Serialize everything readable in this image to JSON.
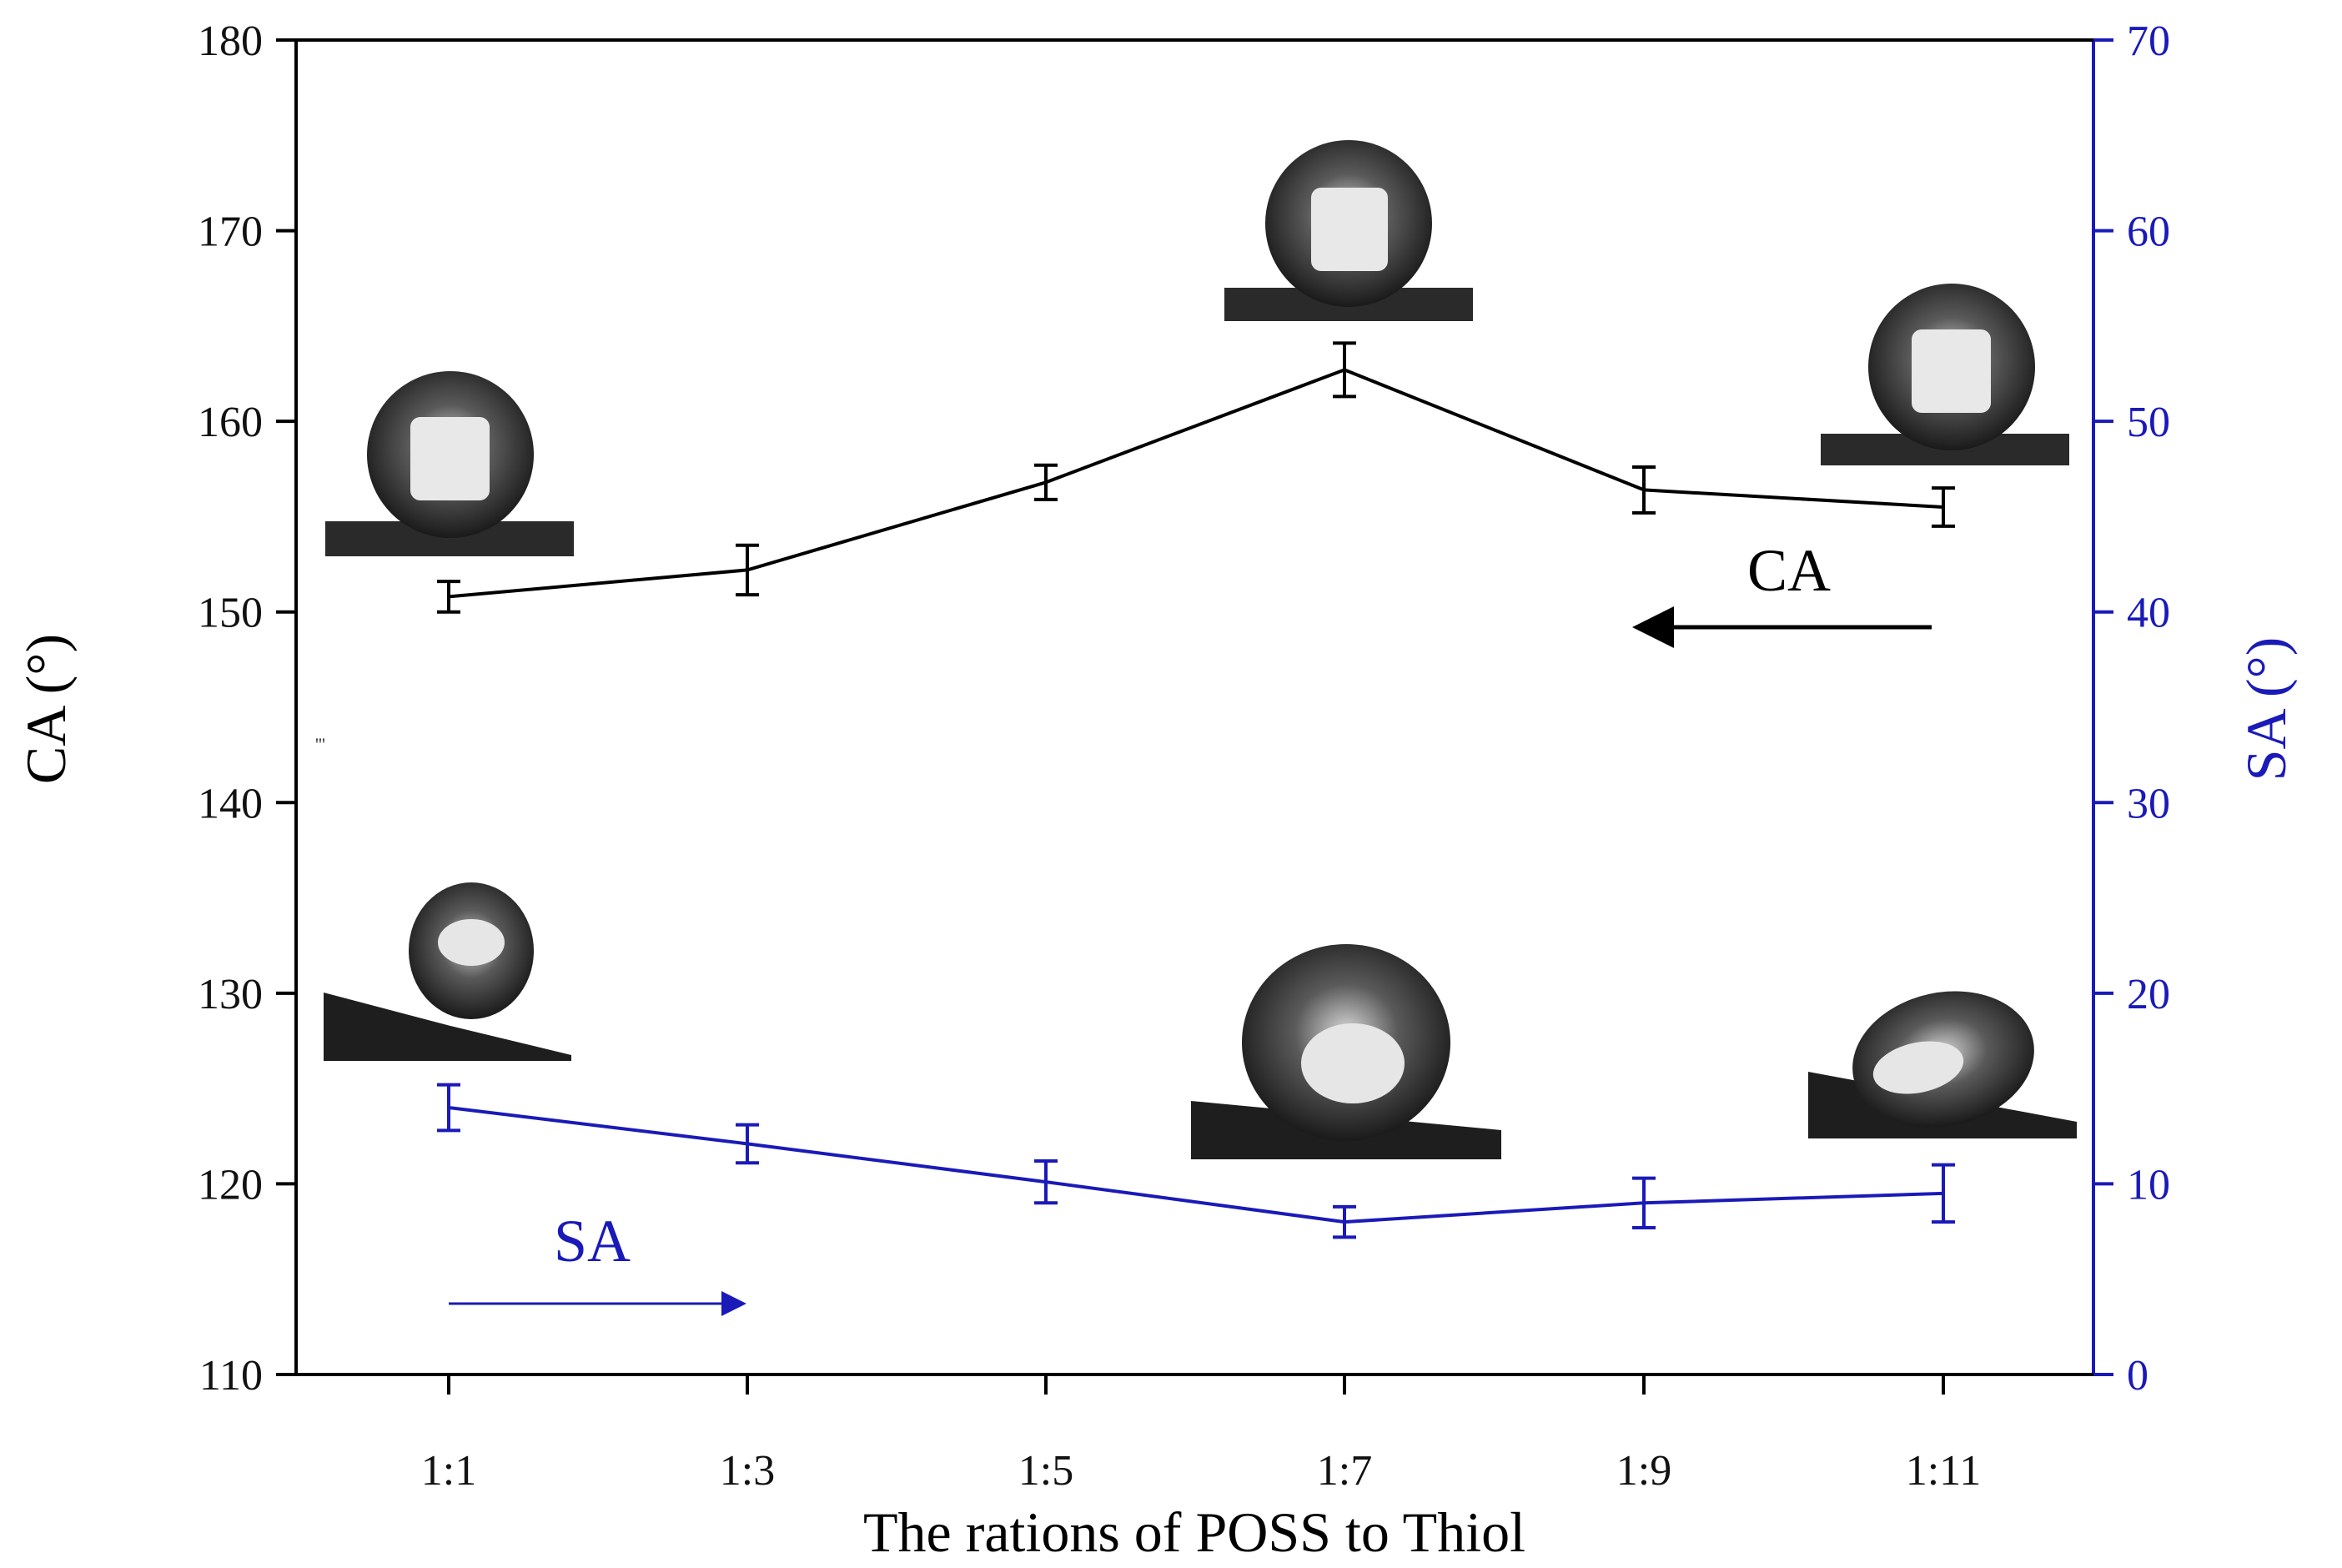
{
  "chart_data": {
    "type": "line",
    "xlabel": "The rations of POSS to Thiol",
    "categories": [
      "1:1",
      "1:3",
      "1:5",
      "1:7",
      "1:9",
      "1:11"
    ],
    "y_left": {
      "label": "CA (°)",
      "range": [
        110,
        180
      ],
      "ticks": [
        "110",
        "120",
        "130",
        "140",
        "150",
        "160",
        "170",
        "180"
      ],
      "color": "#000000"
    },
    "y_right": {
      "label": "SA (°)",
      "range": [
        0,
        70
      ],
      "ticks": [
        "0",
        "10",
        "20",
        "30",
        "40",
        "50",
        "60",
        "70"
      ],
      "color": "#1a1ab8"
    },
    "series": [
      {
        "name": "CA",
        "axis": "left",
        "color": "#000000",
        "values": [
          150.8,
          152.2,
          156.8,
          162.7,
          156.4,
          155.5
        ],
        "errors": [
          0.8,
          1.3,
          0.9,
          1.4,
          1.2,
          1.0
        ]
      },
      {
        "name": "SA",
        "axis": "right",
        "color": "#1a1ab8",
        "values": [
          14.0,
          12.1,
          10.1,
          8.0,
          9.0,
          9.5
        ],
        "errors": [
          1.2,
          1.0,
          1.1,
          0.8,
          1.3,
          1.5
        ]
      }
    ],
    "annotations": {
      "ca_label": "CA",
      "ca_arrow_direction": "left",
      "sa_label": "SA",
      "sa_arrow_direction": "right",
      "stray_mark": "'''"
    },
    "grid": false
  }
}
